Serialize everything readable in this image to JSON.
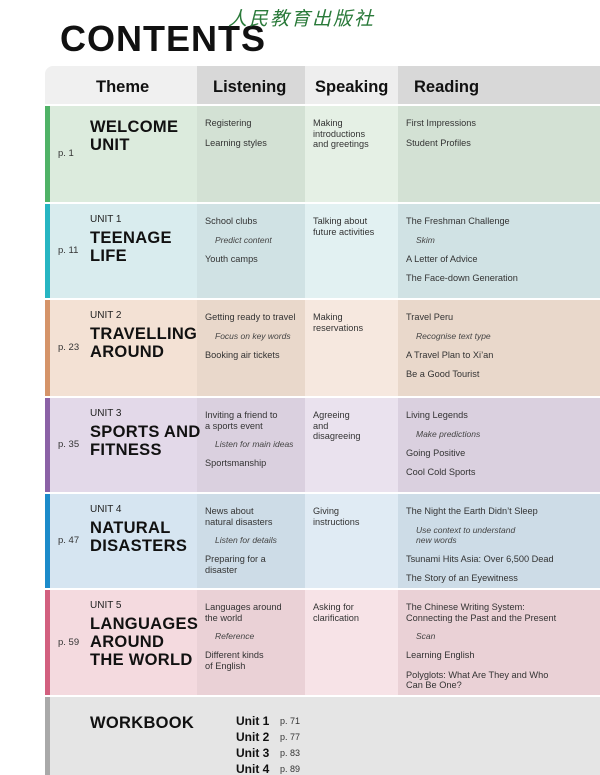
{
  "header": {
    "title": "CONTENTS",
    "publisher": "人民教育出版社"
  },
  "table": {
    "columns": [
      "Theme",
      "Listening",
      "Speaking",
      "Reading"
    ],
    "rows": [
      {
        "page": "p. 1",
        "title": [
          "WELCOME",
          "UNIT"
        ],
        "color": "#4fb266",
        "background": "#dcebdd",
        "listening": [
          "Registering",
          "Learning styles"
        ],
        "speaking": [
          "Making\nintroductions\nand greetings"
        ],
        "reading": [
          "First Impressions",
          "Student Profiles"
        ]
      },
      {
        "page": "p. 11",
        "unit": "UNIT 1",
        "title": [
          "TEENAGE",
          "LIFE"
        ],
        "color": "#27b5c2",
        "background": "#d9ecee",
        "listening": [
          "School clubs",
          {
            "strategy": "Predict content"
          },
          "Youth camps"
        ],
        "speaking": [
          "Talking about\nfuture activities"
        ],
        "reading": [
          "The Freshman Challenge",
          {
            "strategy": "Skim"
          },
          "A Letter of Advice",
          "The Face-down Generation"
        ]
      },
      {
        "page": "p. 23",
        "unit": "UNIT 2",
        "title": [
          "TRAVELLING",
          "AROUND"
        ],
        "color": "#d59469",
        "background": "#f3e1d4",
        "listening": [
          "Getting ready to travel",
          {
            "strategy": "Focus on key words"
          },
          "Booking air tickets"
        ],
        "speaking": [
          "Making\nreservations"
        ],
        "reading": [
          "Travel Peru",
          {
            "strategy": "Recognise text type"
          },
          "A Travel Plan to Xi’an",
          "Be a Good Tourist"
        ]
      },
      {
        "page": "p. 35",
        "unit": "UNIT 3",
        "title": [
          "SPORTS AND",
          "FITNESS"
        ],
        "color": "#8b62a6",
        "background": "#e3d9e9",
        "listening": [
          "Inviting a friend to\na sports event",
          {
            "strategy": "Listen for main ideas"
          },
          "Sportsmanship"
        ],
        "speaking": [
          "Agreeing\nand\ndisagreeing"
        ],
        "reading": [
          "Living Legends",
          {
            "strategy": "Make predictions"
          },
          "Going Positive",
          "Cool Cold Sports"
        ]
      },
      {
        "page": "p. 47",
        "unit": "UNIT 4",
        "title": [
          "NATURAL",
          "DISASTERS"
        ],
        "color": "#1c8bca",
        "background": "#d6e5f1",
        "listening": [
          "News about\nnatural disasters",
          {
            "strategy": "Listen for details"
          },
          "Preparing for a\ndisaster"
        ],
        "speaking": [
          "Giving\ninstructions"
        ],
        "reading": [
          "The Night the Earth Didn’t Sleep",
          {
            "strategy": "Use context to understand\nnew words"
          },
          "Tsunami Hits Asia: Over 6,500 Dead",
          "The Story of an Eyewitness"
        ]
      },
      {
        "page": "p. 59",
        "unit": "UNIT 5",
        "title": [
          "LANGUAGES",
          "AROUND",
          "THE WORLD"
        ],
        "color": "#d2607f",
        "background": "#f4dadf",
        "listening": [
          "Languages around\nthe world",
          {
            "strategy": "Reference"
          },
          "Different kinds\nof English"
        ],
        "speaking": [
          "Asking for\nclarification"
        ],
        "reading": [
          "The Chinese Writing System:\nConnecting the Past and the Present",
          {
            "strategy": "Scan"
          },
          "Learning English",
          "Polyglots: What Are They and Who\nCan Be One?"
        ]
      }
    ]
  },
  "workbook": {
    "title": "WORKBOOK",
    "color": "#a9a9a9",
    "background": "#e5e5e5",
    "units": [
      {
        "unit": "Unit 1",
        "page": "p. 71"
      },
      {
        "unit": "Unit 2",
        "page": "p. 77"
      },
      {
        "unit": "Unit 3",
        "page": "p. 83"
      },
      {
        "unit": "Unit 4",
        "page": "p. 89"
      }
    ]
  }
}
